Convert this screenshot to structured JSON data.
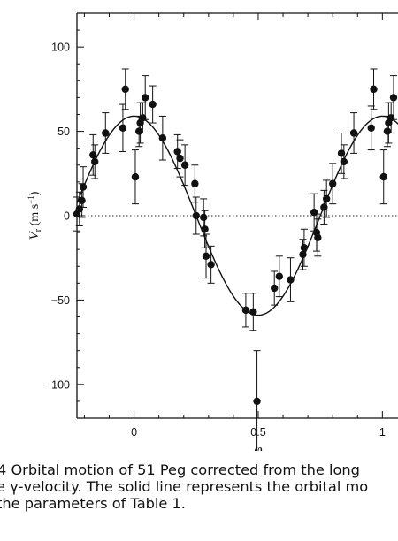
{
  "chart_data": {
    "type": "scatter",
    "xlabel": "φ",
    "ylabel": "Vr (m s−1)",
    "ylabel_parts": {
      "main": "V",
      "sub": "r",
      "unit_open": " (m s",
      "sup": "−1",
      "unit_close": ")"
    },
    "xlim": [
      -0.23,
      1.07
    ],
    "ylim": [
      -120,
      120
    ],
    "xticks": [
      0,
      0.5,
      1
    ],
    "xtick_labels": [
      "0",
      "0.5",
      "1"
    ],
    "yticks": [
      -100,
      -50,
      0,
      50,
      100
    ],
    "ytick_labels": [
      "−100",
      "−50",
      "0",
      "50",
      "100"
    ],
    "zero_line": "dotted",
    "fit_curve": {
      "kind": "sinusoid",
      "amplitude": 59,
      "phase_of_maximum": 0.0
    },
    "series": [
      {
        "points": [
          {
            "x": -0.23,
            "y": 1,
            "err": 10
          },
          {
            "x": -0.22,
            "y": 4,
            "err": 10
          },
          {
            "x": -0.21,
            "y": 9,
            "err": 10
          },
          {
            "x": -0.205,
            "y": 17,
            "err": 12
          },
          {
            "x": -0.165,
            "y": 36,
            "err": 12
          },
          {
            "x": -0.158,
            "y": 32,
            "err": 10
          },
          {
            "x": -0.115,
            "y": 49,
            "err": 12
          },
          {
            "x": -0.045,
            "y": 52,
            "err": 14
          },
          {
            "x": -0.035,
            "y": 75,
            "err": 12
          },
          {
            "x": 0.005,
            "y": 23,
            "err": 16
          },
          {
            "x": 0.02,
            "y": 50,
            "err": 9
          },
          {
            "x": 0.025,
            "y": 55,
            "err": 12
          },
          {
            "x": 0.035,
            "y": 58,
            "err": 9
          },
          {
            "x": 0.045,
            "y": 70,
            "err": 13
          },
          {
            "x": 0.075,
            "y": 66,
            "err": 11
          },
          {
            "x": 0.115,
            "y": 46,
            "err": 13
          },
          {
            "x": 0.175,
            "y": 38,
            "err": 10
          },
          {
            "x": 0.185,
            "y": 34,
            "err": 11
          },
          {
            "x": 0.205,
            "y": 30,
            "err": 12
          },
          {
            "x": 0.245,
            "y": 19,
            "err": 11
          },
          {
            "x": 0.25,
            "y": 0,
            "err": 11
          },
          {
            "x": 0.28,
            "y": -1,
            "err": 11
          },
          {
            "x": 0.285,
            "y": -8,
            "err": 11
          },
          {
            "x": 0.29,
            "y": -24,
            "err": 13
          },
          {
            "x": 0.31,
            "y": -29,
            "err": 11
          },
          {
            "x": 0.45,
            "y": -56,
            "err": 10
          },
          {
            "x": 0.48,
            "y": -57,
            "err": 11
          },
          {
            "x": 0.495,
            "y": -110,
            "err": 30
          },
          {
            "x": 0.565,
            "y": -43,
            "err": 10
          },
          {
            "x": 0.585,
            "y": -36,
            "err": 12
          },
          {
            "x": 0.63,
            "y": -38,
            "err": 13
          },
          {
            "x": 0.68,
            "y": -23,
            "err": 9
          },
          {
            "x": 0.685,
            "y": -19,
            "err": 11
          },
          {
            "x": 0.725,
            "y": 2,
            "err": 11
          },
          {
            "x": 0.735,
            "y": -10,
            "err": 11
          },
          {
            "x": 0.74,
            "y": -13,
            "err": 11
          },
          {
            "x": 0.765,
            "y": 5,
            "err": 10
          },
          {
            "x": 0.775,
            "y": 10,
            "err": 11
          },
          {
            "x": 0.8,
            "y": 19,
            "err": 12
          },
          {
            "x": 0.835,
            "y": 37,
            "err": 12
          },
          {
            "x": 0.845,
            "y": 32,
            "err": 10
          },
          {
            "x": 0.885,
            "y": 49,
            "err": 12
          },
          {
            "x": 0.955,
            "y": 52,
            "err": 13
          },
          {
            "x": 0.965,
            "y": 75,
            "err": 12
          },
          {
            "x": 1.005,
            "y": 23,
            "err": 16
          },
          {
            "x": 1.02,
            "y": 50,
            "err": 9
          },
          {
            "x": 1.025,
            "y": 55,
            "err": 12
          },
          {
            "x": 1.035,
            "y": 58,
            "err": 9
          },
          {
            "x": 1.045,
            "y": 70,
            "err": 13
          }
        ]
      }
    ]
  },
  "caption": {
    "line1": "4 Orbital motion of 51 Peg corrected from the long",
    "line2": "e γ-velocity. The solid line represents the orbital mo",
    "line3": " the parameters of Table 1."
  }
}
